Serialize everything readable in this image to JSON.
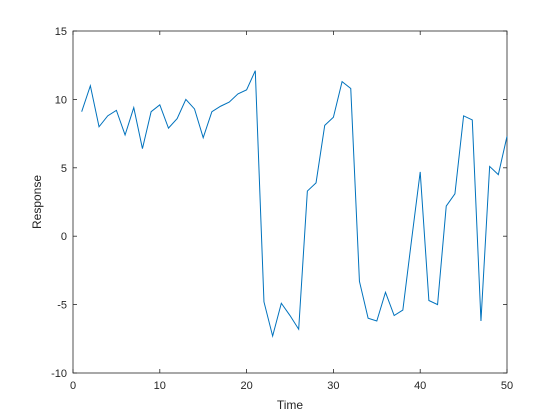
{
  "chart_data": {
    "type": "line",
    "xlabel": "Time",
    "ylabel": "Response",
    "x": [
      1,
      2,
      3,
      4,
      5,
      6,
      7,
      8,
      9,
      10,
      11,
      12,
      13,
      14,
      15,
      16,
      17,
      18,
      19,
      20,
      21,
      22,
      23,
      24,
      25,
      26,
      27,
      28,
      29,
      30,
      31,
      32,
      33,
      34,
      35,
      36,
      37,
      38,
      39,
      40,
      41,
      42,
      43,
      44,
      45,
      46,
      47,
      48,
      49,
      50
    ],
    "series": [
      {
        "color": "#0072bd",
        "values": [
          9.1,
          11.0,
          8.0,
          8.8,
          9.2,
          7.4,
          9.4,
          6.4,
          9.1,
          9.6,
          7.9,
          8.6,
          10.0,
          9.3,
          7.2,
          9.1,
          9.5,
          9.8,
          10.4,
          10.7,
          12.1,
          -4.8,
          -7.3,
          -4.9,
          -5.8,
          -6.8,
          3.3,
          3.9,
          8.1,
          8.7,
          11.3,
          10.8,
          -3.3,
          -6.0,
          -6.2,
          -4.1,
          -5.8,
          -5.4,
          -0.3,
          4.7,
          -4.7,
          -5.0,
          2.2,
          3.1,
          8.8,
          8.5,
          -6.2,
          5.1,
          4.5,
          7.3
        ]
      }
    ],
    "xlim": [
      0,
      50
    ],
    "ylim": [
      -10,
      15
    ],
    "xticks": [
      0,
      10,
      20,
      30,
      40,
      50
    ],
    "yticks": [
      -10,
      -5,
      0,
      5,
      10,
      15
    ]
  }
}
